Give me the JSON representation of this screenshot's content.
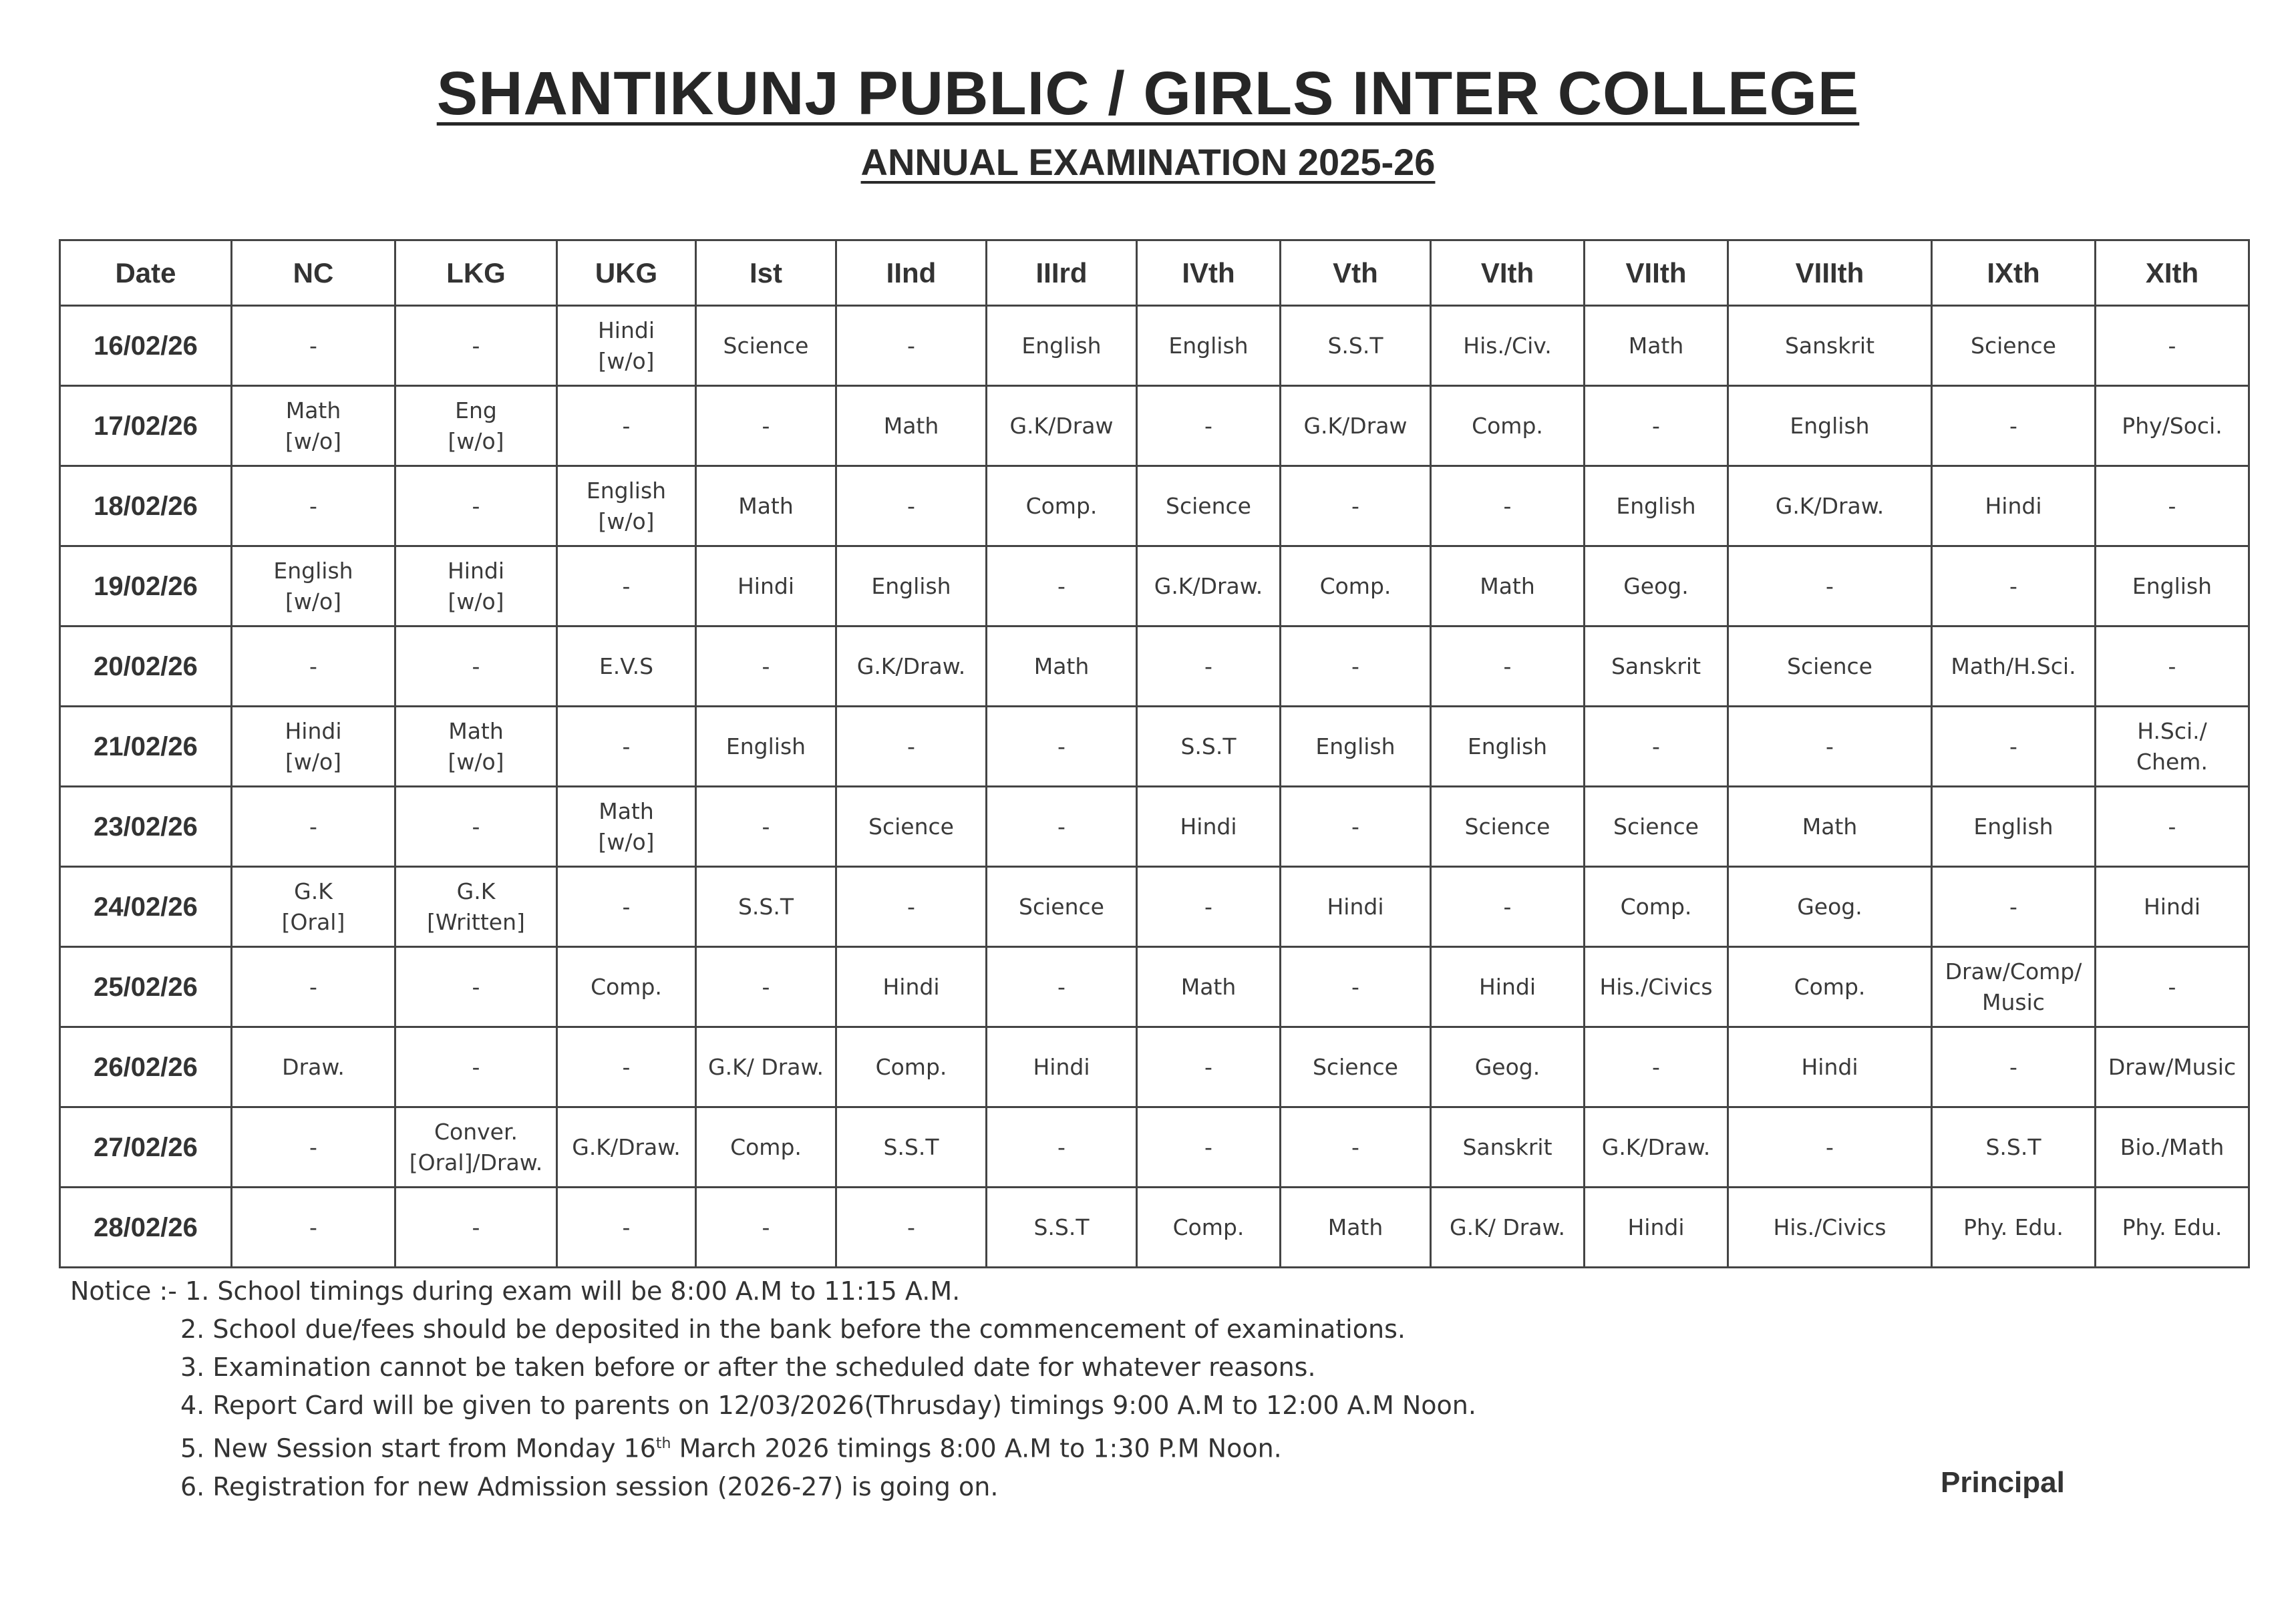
{
  "header": {
    "title": "SHANTIKUNJ PUBLIC / GIRLS INTER COLLEGE",
    "subtitle": "ANNUAL EXAMINATION 2025-26"
  },
  "table": {
    "columns": [
      "Date",
      "NC",
      "LKG",
      "UKG",
      "Ist",
      "IInd",
      "IIIrd",
      "IVth",
      "Vth",
      "VIth",
      "VIIth",
      "VIIIth",
      "IXth",
      "XIth"
    ],
    "rows": [
      [
        "16/02/26",
        "-",
        "-",
        "Hindi\n[w/o]",
        "Science",
        "-",
        "English",
        "English",
        "S.S.T",
        "His./Civ.",
        "Math",
        "Sanskrit",
        "Science",
        "-"
      ],
      [
        "17/02/26",
        "Math\n[w/o]",
        "Eng\n[w/o]",
        "-",
        "-",
        "Math",
        "G.K/Draw",
        "-",
        "G.K/Draw",
        "Comp.",
        "-",
        "English",
        "-",
        "Phy/Soci."
      ],
      [
        "18/02/26",
        "-",
        "-",
        "English\n[w/o]",
        "Math",
        "-",
        "Comp.",
        "Science",
        "-",
        "-",
        "English",
        "G.K/Draw.",
        "Hindi",
        "-"
      ],
      [
        "19/02/26",
        "English\n[w/o]",
        "Hindi\n[w/o]",
        "-",
        "Hindi",
        "English",
        "-",
        "G.K/Draw.",
        "Comp.",
        "Math",
        "Geog.",
        "-",
        "-",
        "English"
      ],
      [
        "20/02/26",
        "-",
        "-",
        "E.V.S",
        "-",
        "G.K/Draw.",
        "Math",
        "-",
        "-",
        "-",
        "Sanskrit",
        "Science",
        "Math/H.Sci.",
        "-"
      ],
      [
        "21/02/26",
        "Hindi\n[w/o]",
        "Math\n[w/o]",
        "-",
        "English",
        "-",
        "-",
        "S.S.T",
        "English",
        "English",
        "-",
        "-",
        "-",
        "H.Sci./\nChem."
      ],
      [
        "23/02/26",
        "-",
        "-",
        "Math\n[w/o]",
        "-",
        "Science",
        "-",
        "Hindi",
        "-",
        "Science",
        "Science",
        "Math",
        "English",
        "-"
      ],
      [
        "24/02/26",
        "G.K\n[Oral]",
        "G.K\n[Written]",
        "-",
        "S.S.T",
        "-",
        "Science",
        "-",
        "Hindi",
        "-",
        "Comp.",
        "Geog.",
        "-",
        "Hindi"
      ],
      [
        "25/02/26",
        "-",
        "-",
        "Comp.",
        "-",
        "Hindi",
        "-",
        "Math",
        "-",
        "Hindi",
        "His./Civics",
        "Comp.",
        "Draw/Comp/\nMusic",
        "-"
      ],
      [
        "26/02/26",
        "Draw.",
        "-",
        "-",
        "G.K/ Draw.",
        "Comp.",
        "Hindi",
        "-",
        "Science",
        "Geog.",
        "-",
        "Hindi",
        "-",
        "Draw/Music"
      ],
      [
        "27/02/26",
        "-",
        "Conver.\n[Oral]/Draw.",
        "G.K/Draw.",
        "Comp.",
        "S.S.T",
        "-",
        "-",
        "-",
        "Sanskrit",
        "G.K/Draw.",
        "-",
        "S.S.T",
        "Bio./Math"
      ],
      [
        "28/02/26",
        "-",
        "-",
        "-",
        "-",
        "-",
        "S.S.T",
        "Comp.",
        "Math",
        "G.K/ Draw.",
        "Hindi",
        "His./Civics",
        "Phy. Edu.",
        "Phy. Edu."
      ]
    ]
  },
  "notices": {
    "prefix": "Notice :- ",
    "items": [
      "1. School timings during exam will be 8:00 A.M to 11:15 A.M.",
      "2. School due/fees should be deposited in the bank before the commencement of examinations.",
      "3. Examination cannot be taken before or after the scheduled date for whatever reasons.",
      "4. Report Card will be given to parents on 12/03/2026(Thrusday) timings 9:00 A.M to 12:00 A.M Noon."
    ],
    "item5": {
      "before": "5. New Session start from Monday 16",
      "sup": "th",
      "after": " March 2026 timings 8:00 A.M to 1:30 P.M Noon."
    },
    "item6": "6. Registration for new Admission session (2026-27) is going on."
  },
  "signature": "Principal"
}
